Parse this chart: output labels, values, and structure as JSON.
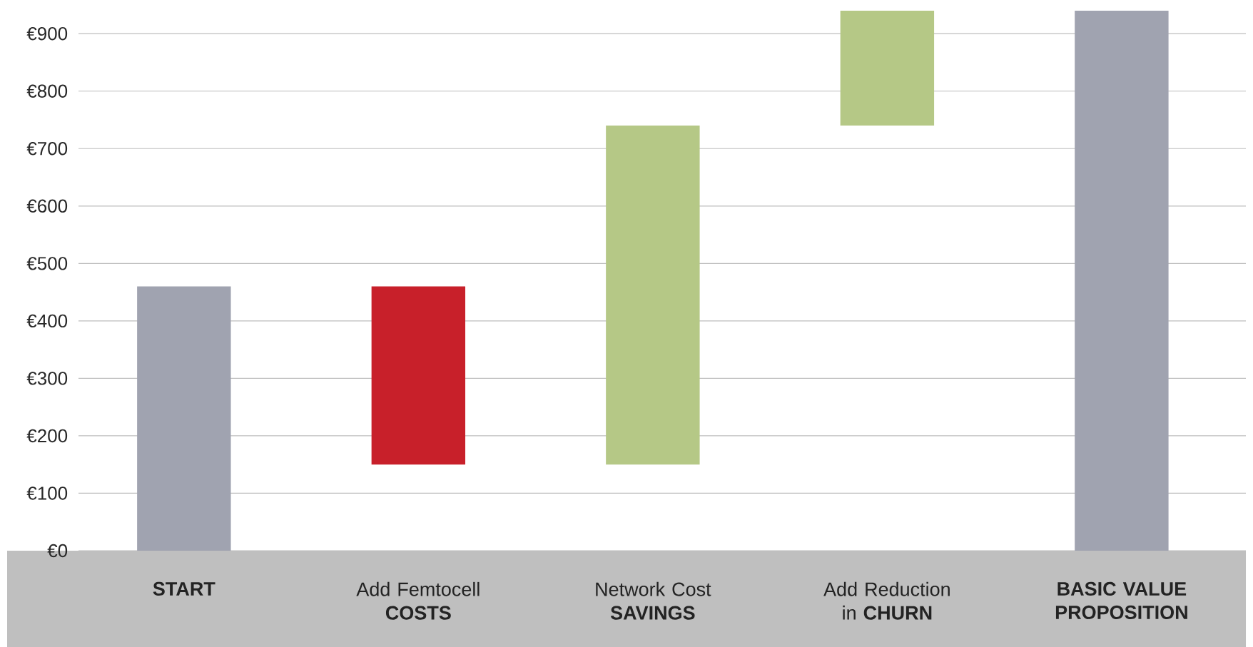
{
  "chart_data": {
    "type": "bar",
    "categories": [
      "**START**",
      "Add Femtocell **COSTS**",
      "Network Cost **SAVINGS**",
      "Add Reduction in **CHURN**",
      "**BASIC VALUE PROPOSITION**"
    ],
    "values": [
      460,
      -310,
      590,
      200,
      940
    ],
    "base": [
      0,
      460,
      150,
      740,
      0
    ],
    "colors": [
      "#a0a3b0",
      "#c8202a",
      "#b5c886",
      "#b5c886",
      "#a0a3b0"
    ],
    "ylim": [
      0,
      940
    ],
    "yticks": [
      {
        "value": 0,
        "label": "€0"
      },
      {
        "value": 100,
        "label": "€100"
      },
      {
        "value": 200,
        "label": "€200"
      },
      {
        "value": 300,
        "label": "€300"
      },
      {
        "value": 400,
        "label": "€400"
      },
      {
        "value": 500,
        "label": "€500"
      },
      {
        "value": 600,
        "label": "€600"
      },
      {
        "value": 700,
        "label": "€700"
      },
      {
        "value": 800,
        "label": "€800"
      },
      {
        "value": 900,
        "label": "€900"
      }
    ],
    "grid": "y"
  }
}
